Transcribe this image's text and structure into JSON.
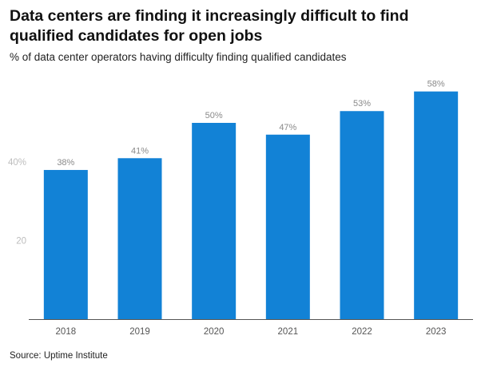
{
  "header": {
    "title": "Data centers are finding it increasingly difficult to find qualified candidates for open jobs",
    "subtitle": "% of data center operators having difficulty finding qualified candidates"
  },
  "footer": {
    "source": "Source: Uptime Institute"
  },
  "chart_data": {
    "type": "bar",
    "title": "Data centers are finding it increasingly difficult to find qualified candidates for open jobs",
    "subtitle": "% of data center operators having difficulty finding qualified candidates",
    "xlabel": "",
    "ylabel": "",
    "categories": [
      "2018",
      "2019",
      "2020",
      "2021",
      "2022",
      "2023"
    ],
    "values": [
      38,
      41,
      50,
      47,
      53,
      58
    ],
    "data_labels": [
      "38%",
      "41%",
      "50%",
      "47%",
      "53%",
      "58%"
    ],
    "y_ticks": [
      20,
      40
    ],
    "y_tick_labels": [
      "20",
      "40%"
    ],
    "ylim": [
      0,
      60
    ],
    "grid": false,
    "legend": "none",
    "bar_color": "#1282d6",
    "axis_color": "#555555"
  }
}
